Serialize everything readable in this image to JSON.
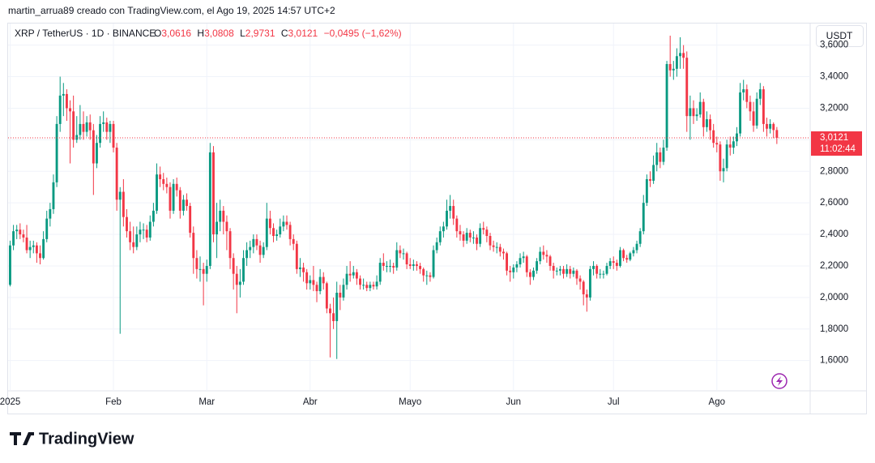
{
  "header": {
    "credit": "martin_arrua89 creado con TradingView.com, el Ago 19, 2025 14:57 UTC+2",
    "symbol": "XRP / TetherUS · 1D · BINANCE",
    "o_label": "O",
    "o": "3,0616",
    "h_label": "H",
    "h": "3,0808",
    "l_label": "L",
    "l": "2,9731",
    "c_label": "C",
    "c": "3,0121",
    "change": "−0,0495 (−1,62%)",
    "currency": "USDT",
    "price_label": "3,0121",
    "countdown": "11:02:44",
    "logo": "TradingView"
  },
  "chart_data": {
    "type": "candlestick",
    "up_color": "#089981",
    "down_color": "#f23645",
    "grid": true,
    "xlim": [
      -0.6,
      240
    ],
    "ylim": [
      1.408,
      3.737
    ],
    "xticks": [
      {
        "value": 0,
        "label": "2025"
      },
      {
        "value": 31,
        "label": "Feb"
      },
      {
        "value": 59,
        "label": "Mar"
      },
      {
        "value": 90,
        "label": "Abr"
      },
      {
        "value": 120,
        "label": "Mayo"
      },
      {
        "value": 151,
        "label": "Jun"
      },
      {
        "value": 181,
        "label": "Jul"
      },
      {
        "value": 212,
        "label": "Ago"
      }
    ],
    "yticks": [
      {
        "value": 1.6,
        "label": "1,6000"
      },
      {
        "value": 1.8,
        "label": "1,8000"
      },
      {
        "value": 2.0,
        "label": "2,0000"
      },
      {
        "value": 2.2,
        "label": "2,2000"
      },
      {
        "value": 2.4,
        "label": "2,4000"
      },
      {
        "value": 2.6,
        "label": "2,6000"
      },
      {
        "value": 2.8,
        "label": "2,8000"
      },
      {
        "value": 3.0,
        "label": "3,0000"
      },
      {
        "value": 3.2,
        "label": "3,2000"
      },
      {
        "value": 3.4,
        "label": "3,4000"
      },
      {
        "value": 3.6,
        "label": "3,6000"
      }
    ],
    "open": [
      2.08,
      2.33,
      2.42,
      2.43,
      2.4,
      2.38,
      2.3,
      2.32,
      2.33,
      2.28,
      2.25,
      2.37,
      2.5,
      2.56,
      2.73,
      3.1,
      3.28,
      3.29,
      3.2,
      3.18,
      3.0,
      3.03,
      3.1,
      3.05,
      3.11,
      3.06,
      2.85,
      2.98,
      3.1,
      3.11,
      3.05,
      3.1,
      2.95,
      2.62,
      2.67,
      2.51,
      2.42,
      2.35,
      2.32,
      2.4,
      2.43,
      2.43,
      2.38,
      2.48,
      2.55,
      2.78,
      2.75,
      2.72,
      2.7,
      2.55,
      2.72,
      2.68,
      2.55,
      2.62,
      2.58,
      2.41,
      2.25,
      2.18,
      2.18,
      2.15,
      2.2,
      2.92,
      2.4,
      2.48,
      2.55,
      2.48,
      2.42,
      2.25,
      2.15,
      2.08,
      2.1,
      2.25,
      2.3,
      2.32,
      2.37,
      2.33,
      2.27,
      2.32,
      2.5,
      2.44,
      2.39,
      2.4,
      2.45,
      2.48,
      2.46,
      2.37,
      2.34,
      2.18,
      2.19,
      2.16,
      2.09,
      2.11,
      2.08,
      2.04,
      2.13,
      2.09,
      1.93,
      1.9,
      1.85,
      2.03,
      2.0,
      2.08,
      2.15,
      2.14,
      2.16,
      2.12,
      2.08,
      2.08,
      2.06,
      2.08,
      2.07,
      2.1,
      2.22,
      2.2,
      2.2,
      2.2,
      2.19,
      2.3,
      2.28,
      2.28,
      2.21,
      2.2,
      2.21,
      2.2,
      2.18,
      2.14,
      2.14,
      2.13,
      2.3,
      2.35,
      2.42,
      2.45,
      2.55,
      2.58,
      2.5,
      2.42,
      2.4,
      2.36,
      2.41,
      2.38,
      2.38,
      2.34,
      2.44,
      2.43,
      2.39,
      2.33,
      2.32,
      2.32,
      2.29,
      2.28,
      2.17,
      2.16,
      2.19,
      2.21,
      2.25,
      2.26,
      2.16,
      2.13,
      2.17,
      2.23,
      2.29,
      2.27,
      2.26,
      2.2,
      2.17,
      2.17,
      2.18,
      2.15,
      2.18,
      2.15,
      2.17,
      2.12,
      2.1,
      2.02,
      2.0,
      2.18,
      2.2,
      2.15,
      2.15,
      2.15,
      2.2,
      2.23,
      2.22,
      2.2,
      2.3,
      2.25,
      2.24,
      2.28,
      2.3,
      2.34,
      2.42,
      2.6,
      2.75,
      2.74,
      2.84,
      2.92,
      2.86,
      2.95,
      3.48,
      3.44,
      3.45,
      3.53,
      3.55,
      3.52,
      3.15,
      3.2,
      3.15,
      3.16,
      3.24,
      3.08,
      3.13,
      3.06,
      2.98,
      2.97,
      2.8,
      2.82,
      2.97,
      2.95,
      2.99,
      3.04,
      3.3,
      3.32,
      3.24,
      3.18,
      3.09,
      3.26,
      3.32,
      3.1,
      3.07,
      3.1,
      3.0616
    ],
    "high": [
      2.36,
      2.46,
      2.46,
      2.47,
      2.43,
      2.46,
      2.36,
      2.36,
      2.35,
      2.33,
      2.42,
      2.55,
      2.6,
      2.78,
      3.15,
      3.4,
      3.36,
      3.32,
      3.25,
      3.28,
      3.15,
      3.22,
      3.18,
      3.15,
      3.16,
      3.1,
      3.03,
      3.15,
      3.18,
      3.14,
      3.12,
      3.12,
      2.98,
      2.7,
      2.75,
      2.56,
      2.48,
      2.45,
      2.45,
      2.48,
      2.47,
      2.46,
      2.52,
      2.6,
      2.85,
      2.83,
      2.79,
      2.76,
      2.73,
      2.75,
      2.76,
      2.7,
      2.65,
      2.66,
      2.6,
      2.45,
      2.3,
      2.26,
      2.22,
      2.24,
      2.98,
      2.96,
      2.6,
      2.62,
      2.58,
      2.52,
      2.44,
      2.28,
      2.2,
      2.18,
      2.3,
      2.35,
      2.36,
      2.4,
      2.4,
      2.36,
      2.35,
      2.6,
      2.55,
      2.47,
      2.43,
      2.5,
      2.52,
      2.52,
      2.48,
      2.4,
      2.36,
      2.25,
      2.22,
      2.18,
      2.14,
      2.2,
      2.1,
      2.18,
      2.16,
      2.1,
      1.96,
      2.0,
      2.1,
      2.08,
      2.12,
      2.2,
      2.23,
      2.2,
      2.18,
      2.14,
      2.12,
      2.1,
      2.1,
      2.1,
      2.14,
      2.25,
      2.28,
      2.23,
      2.24,
      2.22,
      2.35,
      2.33,
      2.31,
      2.29,
      2.25,
      2.24,
      2.23,
      2.22,
      2.19,
      2.17,
      2.16,
      2.33,
      2.38,
      2.45,
      2.48,
      2.62,
      2.65,
      2.62,
      2.52,
      2.46,
      2.42,
      2.44,
      2.43,
      2.42,
      2.4,
      2.47,
      2.48,
      2.45,
      2.41,
      2.36,
      2.35,
      2.34,
      2.31,
      2.29,
      2.2,
      2.21,
      2.23,
      2.28,
      2.29,
      2.27,
      2.18,
      2.19,
      2.25,
      2.32,
      2.33,
      2.3,
      2.27,
      2.22,
      2.19,
      2.2,
      2.2,
      2.21,
      2.2,
      2.19,
      2.18,
      2.14,
      2.11,
      2.05,
      2.2,
      2.23,
      2.21,
      2.18,
      2.17,
      2.22,
      2.25,
      2.26,
      2.24,
      2.32,
      2.31,
      2.27,
      2.29,
      2.32,
      2.36,
      2.44,
      2.65,
      2.78,
      2.8,
      2.9,
      2.98,
      2.95,
      3.0,
      3.5,
      3.66,
      3.5,
      3.58,
      3.65,
      3.6,
      3.56,
      3.28,
      3.25,
      3.2,
      3.3,
      3.26,
      3.18,
      3.16,
      3.1,
      3.02,
      2.99,
      2.88,
      3.0,
      3.02,
      3.02,
      3.08,
      3.36,
      3.38,
      3.35,
      3.28,
      3.24,
      3.3,
      3.36,
      3.34,
      3.14,
      3.13,
      3.11,
      3.0808
    ],
    "low": [
      2.07,
      2.3,
      2.37,
      2.37,
      2.35,
      2.28,
      2.25,
      2.28,
      2.22,
      2.21,
      2.24,
      2.35,
      2.45,
      2.53,
      2.7,
      3.05,
      3.15,
      3.12,
      2.85,
      2.95,
      2.98,
      3.0,
      3.0,
      3.02,
      3.0,
      2.65,
      2.82,
      2.95,
      3.05,
      3.0,
      2.98,
      2.92,
      2.55,
      1.77,
      2.45,
      2.38,
      2.3,
      2.28,
      2.3,
      2.35,
      2.37,
      2.35,
      2.36,
      2.45,
      2.53,
      2.7,
      2.68,
      2.66,
      2.5,
      2.53,
      2.64,
      2.5,
      2.52,
      2.55,
      2.38,
      2.15,
      2.12,
      2.1,
      1.95,
      2.1,
      2.18,
      2.35,
      2.25,
      2.42,
      2.4,
      2.3,
      2.18,
      2.05,
      1.9,
      2.0,
      2.08,
      2.2,
      2.25,
      2.28,
      2.3,
      2.22,
      2.25,
      2.3,
      2.4,
      2.35,
      2.36,
      2.38,
      2.42,
      2.43,
      2.33,
      2.3,
      2.15,
      2.13,
      2.1,
      2.05,
      2.05,
      2.04,
      1.97,
      2.02,
      2.05,
      1.9,
      1.62,
      1.8,
      1.61,
      1.92,
      1.98,
      2.05,
      2.1,
      2.12,
      2.08,
      2.05,
      2.05,
      2.04,
      2.04,
      2.05,
      2.05,
      2.08,
      2.17,
      2.16,
      2.16,
      2.15,
      2.17,
      2.25,
      2.24,
      2.18,
      2.18,
      2.17,
      2.17,
      2.15,
      2.1,
      2.08,
      2.1,
      2.12,
      2.28,
      2.33,
      2.38,
      2.43,
      2.5,
      2.46,
      2.38,
      2.36,
      2.32,
      2.34,
      2.35,
      2.34,
      2.3,
      2.32,
      2.4,
      2.35,
      2.3,
      2.29,
      2.28,
      2.26,
      2.24,
      2.14,
      2.1,
      2.12,
      2.16,
      2.19,
      2.22,
      2.13,
      2.08,
      2.11,
      2.15,
      2.21,
      2.24,
      2.22,
      2.17,
      2.12,
      2.14,
      2.14,
      2.12,
      2.13,
      2.12,
      2.13,
      2.08,
      2.05,
      1.95,
      1.91,
      1.98,
      2.14,
      2.12,
      2.12,
      2.12,
      2.14,
      2.18,
      2.18,
      2.17,
      2.19,
      2.23,
      2.22,
      2.23,
      2.26,
      2.28,
      2.32,
      2.4,
      2.58,
      2.7,
      2.72,
      2.8,
      2.82,
      2.84,
      2.93,
      3.4,
      3.38,
      3.4,
      3.45,
      3.45,
      3.05,
      3.0,
      3.1,
      3.12,
      3.14,
      3.02,
      3.05,
      3.0,
      2.95,
      2.92,
      2.74,
      2.73,
      2.8,
      2.9,
      2.91,
      2.96,
      3.02,
      3.25,
      3.2,
      3.12,
      3.05,
      3.07,
      3.22,
      3.05,
      3.02,
      3.04,
      3.01,
      2.9731
    ],
    "close": [
      2.33,
      2.42,
      2.43,
      2.4,
      2.38,
      2.3,
      2.32,
      2.33,
      2.28,
      2.25,
      2.37,
      2.5,
      2.56,
      2.73,
      3.1,
      3.28,
      3.29,
      3.2,
      3.18,
      3.0,
      3.03,
      3.1,
      3.05,
      3.11,
      3.06,
      2.85,
      2.98,
      3.1,
      3.11,
      3.05,
      3.1,
      2.95,
      2.62,
      2.67,
      2.51,
      2.42,
      2.35,
      2.32,
      2.4,
      2.43,
      2.43,
      2.38,
      2.48,
      2.55,
      2.78,
      2.75,
      2.72,
      2.7,
      2.55,
      2.72,
      2.68,
      2.55,
      2.62,
      2.58,
      2.41,
      2.25,
      2.18,
      2.18,
      2.15,
      2.2,
      2.92,
      2.4,
      2.48,
      2.55,
      2.48,
      2.42,
      2.25,
      2.15,
      2.08,
      2.1,
      2.25,
      2.3,
      2.32,
      2.37,
      2.33,
      2.27,
      2.32,
      2.5,
      2.44,
      2.39,
      2.4,
      2.45,
      2.48,
      2.46,
      2.37,
      2.34,
      2.18,
      2.19,
      2.16,
      2.09,
      2.11,
      2.08,
      2.04,
      2.13,
      2.09,
      1.93,
      1.9,
      1.85,
      2.03,
      2.0,
      2.08,
      2.15,
      2.14,
      2.16,
      2.12,
      2.08,
      2.08,
      2.06,
      2.08,
      2.07,
      2.1,
      2.22,
      2.2,
      2.2,
      2.2,
      2.19,
      2.3,
      2.28,
      2.28,
      2.21,
      2.2,
      2.21,
      2.2,
      2.18,
      2.14,
      2.14,
      2.13,
      2.3,
      2.35,
      2.42,
      2.45,
      2.55,
      2.58,
      2.5,
      2.42,
      2.4,
      2.36,
      2.41,
      2.38,
      2.38,
      2.34,
      2.44,
      2.43,
      2.39,
      2.33,
      2.32,
      2.32,
      2.29,
      2.28,
      2.17,
      2.16,
      2.19,
      2.21,
      2.25,
      2.26,
      2.16,
      2.13,
      2.17,
      2.23,
      2.29,
      2.27,
      2.26,
      2.2,
      2.17,
      2.17,
      2.18,
      2.15,
      2.18,
      2.15,
      2.17,
      2.12,
      2.1,
      2.02,
      2.0,
      2.18,
      2.2,
      2.15,
      2.15,
      2.15,
      2.2,
      2.23,
      2.22,
      2.2,
      2.3,
      2.25,
      2.24,
      2.28,
      2.3,
      2.34,
      2.42,
      2.6,
      2.75,
      2.74,
      2.84,
      2.92,
      2.86,
      2.95,
      3.48,
      3.44,
      3.45,
      3.53,
      3.55,
      3.52,
      3.15,
      3.2,
      3.15,
      3.16,
      3.24,
      3.08,
      3.13,
      3.06,
      2.98,
      2.97,
      2.8,
      2.82,
      2.97,
      2.95,
      2.99,
      3.04,
      3.3,
      3.32,
      3.24,
      3.18,
      3.09,
      3.26,
      3.32,
      3.1,
      3.07,
      3.1,
      3.0616,
      3.0121
    ]
  }
}
